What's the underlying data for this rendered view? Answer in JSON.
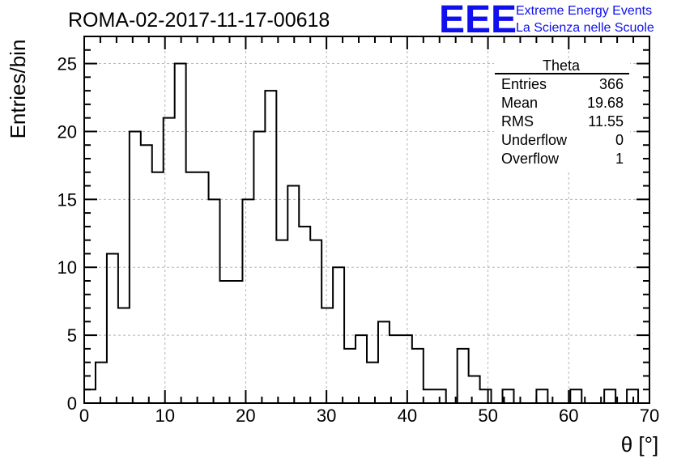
{
  "chart_data": {
    "type": "histogram",
    "title": "ROMA-02-2017-11-17-00618",
    "xlabel": "θ [°]",
    "ylabel": "Entries/bin",
    "xlim": [
      0,
      70
    ],
    "ylim": [
      0,
      27
    ],
    "x_ticks": [
      0,
      10,
      20,
      30,
      40,
      50,
      60,
      70
    ],
    "y_ticks": [
      0,
      5,
      10,
      15,
      20,
      25
    ],
    "grid": true,
    "bin_width": 1.4,
    "bin_edges_start": 0,
    "values": [
      1,
      3,
      11,
      7,
      20,
      19,
      17,
      21,
      25,
      17,
      17,
      15,
      9,
      9,
      15,
      20,
      23,
      12,
      16,
      13,
      12,
      7,
      10,
      4,
      5,
      3,
      6,
      5,
      5,
      4,
      1,
      1,
      0,
      4,
      2,
      1,
      0,
      1,
      0,
      0,
      1,
      0,
      0,
      1,
      0,
      0,
      1,
      0,
      1,
      0
    ],
    "stats_box": {
      "title": "Theta",
      "rows": [
        {
          "label": "Entries",
          "value": "366"
        },
        {
          "label": "Mean",
          "value": "19.68"
        },
        {
          "label": "RMS",
          "value": "11.55"
        },
        {
          "label": "Underflow",
          "value": "0"
        },
        {
          "label": "Overflow",
          "value": "1"
        }
      ]
    }
  },
  "logo": {
    "mark": "EEE",
    "line1": "Extreme Energy Events",
    "line2": "La Scienza nelle Scuole",
    "color": "#1010ee"
  }
}
